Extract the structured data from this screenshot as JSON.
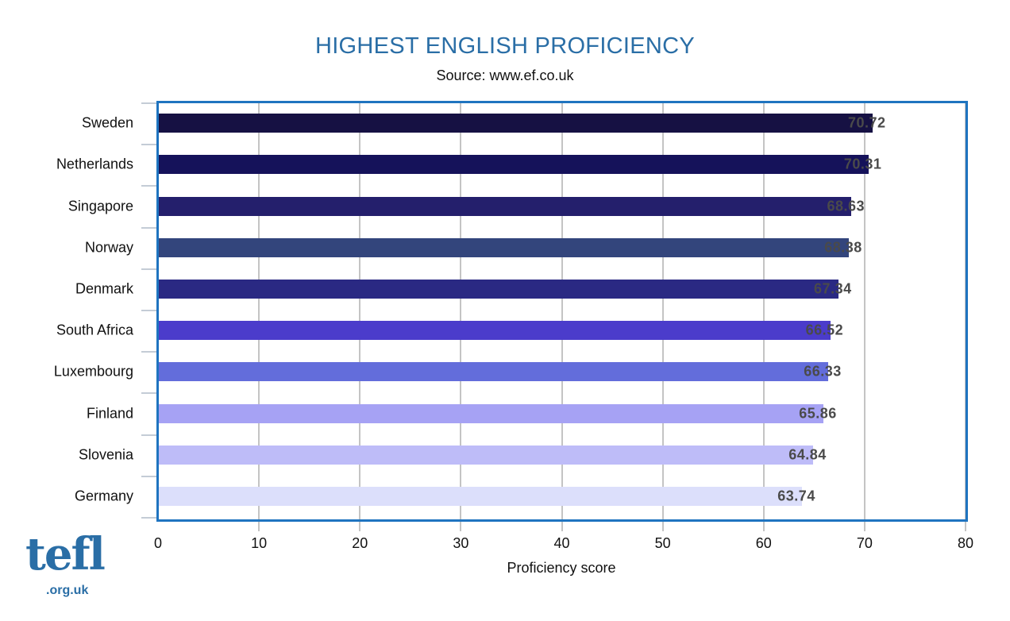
{
  "header": {
    "title": "HIGHEST ENGLISH PROFICIENCY",
    "subtitle": "Source: www.ef.co.uk"
  },
  "logo": {
    "main": "tefl",
    "sub": ".org.uk"
  },
  "colors": {
    "title": "#2a6ea6",
    "frame": "#1f74c0",
    "value_label": "#4a4a4a"
  },
  "chart_data": {
    "type": "bar",
    "orientation": "horizontal",
    "title": "HIGHEST ENGLISH PROFICIENCY",
    "subtitle": "Source: www.ef.co.uk",
    "xlabel": "Proficiency score",
    "ylabel": "",
    "xlim": [
      0,
      80
    ],
    "x_ticks": [
      "0",
      "10",
      "20",
      "30",
      "40",
      "50",
      "60",
      "70",
      "80"
    ],
    "grid": true,
    "legend": null,
    "categories": [
      "Sweden",
      "Netherlands",
      "Singapore",
      "Norway",
      "Denmark",
      "South Africa",
      "Luxembourg",
      "Finland",
      "Slovenia",
      "Germany"
    ],
    "values": [
      70.72,
      70.31,
      68.63,
      68.38,
      67.34,
      66.52,
      66.33,
      65.86,
      64.84,
      63.74
    ],
    "value_labels": [
      "70.72",
      "70.31",
      "68.63",
      "68.38",
      "67.34",
      "66.52",
      "66.33",
      "65.86",
      "64.84",
      "63.74"
    ],
    "bar_colors": [
      "#161143",
      "#15125a",
      "#241f6c",
      "#33457c",
      "#2a2983",
      "#4b3ccb",
      "#636ddb",
      "#a6a2f4",
      "#bebcf8",
      "#dcdffb"
    ]
  }
}
